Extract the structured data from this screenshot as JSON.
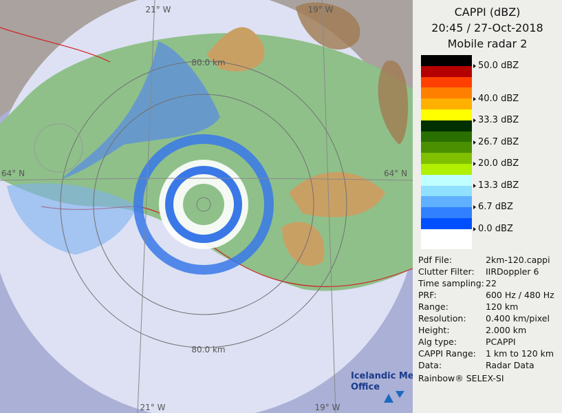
{
  "header": {
    "title": "CAPPI (dBZ)",
    "time": "20:45 / 27-Oct-2018",
    "radar": "Mobile radar 2"
  },
  "legend": {
    "labels": [
      "50.0 dBZ",
      "40.0 dBZ",
      "33.3 dBZ",
      "26.7 dBZ",
      "20.0 dBZ",
      "13.3 dBZ",
      "6.7 dBZ",
      "0.0 dBZ"
    ]
  },
  "info": {
    "rows": [
      [
        "Pdf File:",
        "2km-120.cappi"
      ],
      [
        "Clutter Filter:",
        "IIRDoppler 6"
      ],
      [
        "Time sampling:",
        "22"
      ],
      [
        "PRF:",
        "600 Hz / 480 Hz"
      ],
      [
        "Range:",
        "120 km"
      ],
      [
        "Resolution:",
        "0.400 km/pixel"
      ],
      [
        "Height:",
        "2.000 km"
      ],
      [
        "Alg type:",
        "PCAPPI"
      ],
      [
        "CAPPI Range:",
        "1 km to 120 km"
      ],
      [
        "Data:",
        "Radar Data"
      ]
    ],
    "footer": "Rainbow® SELEX-SI"
  },
  "map": {
    "labels": {
      "lon_top_left": "21° W",
      "lon_top_right": "19° W",
      "range_top": "80.0 km",
      "lat_left": "64° N",
      "lat_right": "64° N",
      "range_bottom": "80.0 km",
      "lon_bottom_left": "21° W",
      "lon_bottom_right": "19° W"
    }
  },
  "logo": {
    "line1": "Icelandic Met",
    "line2": "Office"
  }
}
